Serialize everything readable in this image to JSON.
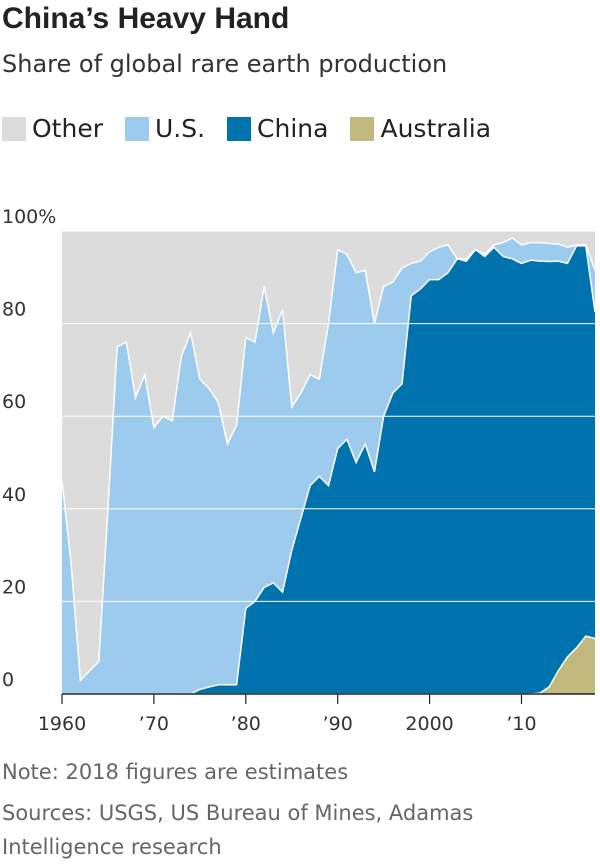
{
  "chart_data": {
    "type": "stacked_area",
    "title": "China’s Heavy Hand",
    "subtitle": "Share of global rare earth production",
    "note": "Note: 2018 figures are estimates",
    "sources": "Sources: USGS, US Bureau of Mines, Adamas Intelligence research",
    "x": [
      1960,
      1961,
      1962,
      1963,
      1964,
      1965,
      1966,
      1967,
      1968,
      1969,
      1970,
      1971,
      1972,
      1973,
      1974,
      1975,
      1976,
      1977,
      1978,
      1979,
      1980,
      1981,
      1982,
      1983,
      1984,
      1985,
      1986,
      1987,
      1988,
      1989,
      1990,
      1991,
      1992,
      1993,
      1994,
      1995,
      1996,
      1997,
      1998,
      1999,
      2000,
      2001,
      2002,
      2003,
      2004,
      2005,
      2006,
      2007,
      2008,
      2009,
      2010,
      2011,
      2012,
      2013,
      2014,
      2015,
      2016,
      2017,
      2018
    ],
    "series": [
      {
        "name": "Other",
        "color": "#dcdcdc",
        "values": [
          54,
          72,
          97,
          95,
          93,
          60,
          25,
          24,
          36,
          31,
          42.5,
          40,
          41,
          27,
          22,
          32,
          34,
          37,
          46,
          42,
          23,
          24,
          12,
          22,
          17,
          38,
          35,
          31,
          32,
          20,
          4,
          5,
          9,
          8.5,
          20,
          12,
          11,
          8,
          7,
          6.5,
          4.5,
          3.5,
          3,
          6,
          6,
          4,
          5,
          3,
          2.5,
          1.5,
          3,
          2.5,
          2.5,
          2.7,
          2.8,
          3.5,
          3,
          3,
          8.5
        ]
      },
      {
        "name": "U.S.",
        "color": "#9ccbee",
        "values": [
          46,
          28,
          3,
          5,
          7,
          40,
          75,
          76,
          64,
          69,
          57.5,
          60,
          59,
          73,
          78,
          67,
          64.5,
          61,
          52,
          56,
          58.5,
          56,
          65,
          54,
          61,
          31,
          27,
          24,
          21,
          35,
          43,
          40,
          41,
          37.5,
          32,
          28,
          24,
          25,
          7,
          6,
          6,
          7,
          6,
          0,
          0.5,
          0,
          0.5,
          0.5,
          3,
          4.5,
          4,
          3.8,
          4,
          3.9,
          3.7,
          3.5,
          0.2,
          0.2,
          9
        ]
      },
      {
        "name": "China",
        "color": "#0072ad",
        "values": [
          0,
          0,
          0,
          0,
          0,
          0,
          0,
          0,
          0,
          0,
          0,
          0,
          0,
          0,
          0,
          1,
          1.5,
          2,
          2,
          2,
          18.5,
          20,
          23,
          24,
          22,
          31,
          38,
          45,
          47,
          45,
          53,
          55,
          50,
          54,
          48,
          60,
          65,
          67,
          86,
          87.5,
          89.5,
          89.5,
          91,
          94,
          93.5,
          96,
          94.5,
          96.5,
          94.5,
          94,
          93,
          93.7,
          93.3,
          91.9,
          88.5,
          85,
          86.8,
          84.3,
          70.5
        ]
      },
      {
        "name": "Australia",
        "color": "#c2b97f",
        "values": [
          0,
          0,
          0,
          0,
          0,
          0,
          0,
          0,
          0,
          0,
          0,
          0,
          0,
          0,
          0,
          0,
          0,
          0,
          0,
          0,
          0,
          0,
          0,
          0,
          0,
          0,
          0,
          0,
          0,
          0,
          0,
          0,
          0,
          0,
          0,
          0,
          0,
          0,
          0,
          0,
          0,
          0,
          0,
          0,
          0,
          0,
          0,
          0,
          0,
          0,
          0,
          0,
          0.2,
          1.5,
          5,
          8,
          10,
          12.5,
          12
        ]
      }
    ],
    "xlim": [
      1960,
      2018
    ],
    "xticks": [
      {
        "value": 1960,
        "label": "1960"
      },
      {
        "value": 1970,
        "label": "’70"
      },
      {
        "value": 1980,
        "label": "’80"
      },
      {
        "value": 1990,
        "label": "’90"
      },
      {
        "value": 2000,
        "label": "2000"
      },
      {
        "value": 2010,
        "label": "’10"
      }
    ],
    "ylim": [
      0,
      100
    ],
    "yticks": [
      0,
      20,
      40,
      60,
      80,
      {
        "value": 100,
        "label": "100%"
      }
    ],
    "grid": true
  }
}
